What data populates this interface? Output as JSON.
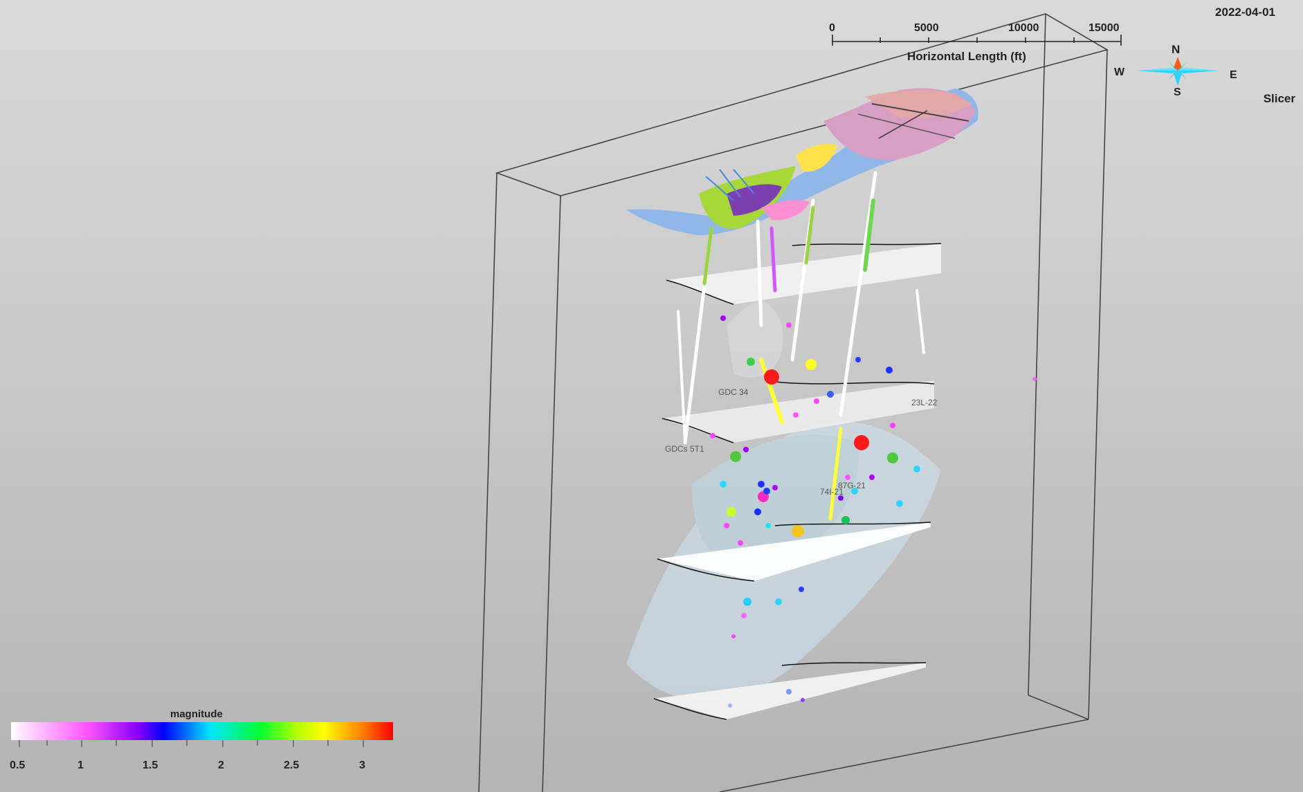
{
  "header": {
    "date": "2022-04-01",
    "slicer_label": "Slicer"
  },
  "scalebar": {
    "title": "Horizontal Length (ft)",
    "ticks": [
      "0",
      "5000",
      "10000",
      "15000"
    ]
  },
  "compass": {
    "north": "N",
    "south": "S",
    "east": "E",
    "west": "W"
  },
  "legend": {
    "title": "magnitude",
    "ticks": [
      "0.5",
      "1",
      "1.5",
      "2",
      "2.5",
      "3"
    ]
  },
  "wells": [
    "GDC 34",
    "23L-22",
    "GDCs 5T1",
    "87G-21",
    "74I-21"
  ],
  "colors": {
    "background": "#c8c8c8",
    "box_line": "#444444",
    "surface_pink": "#d8a0c0",
    "surface_blue": "#6fa5e8",
    "surface_green": "#9bd43c"
  }
}
